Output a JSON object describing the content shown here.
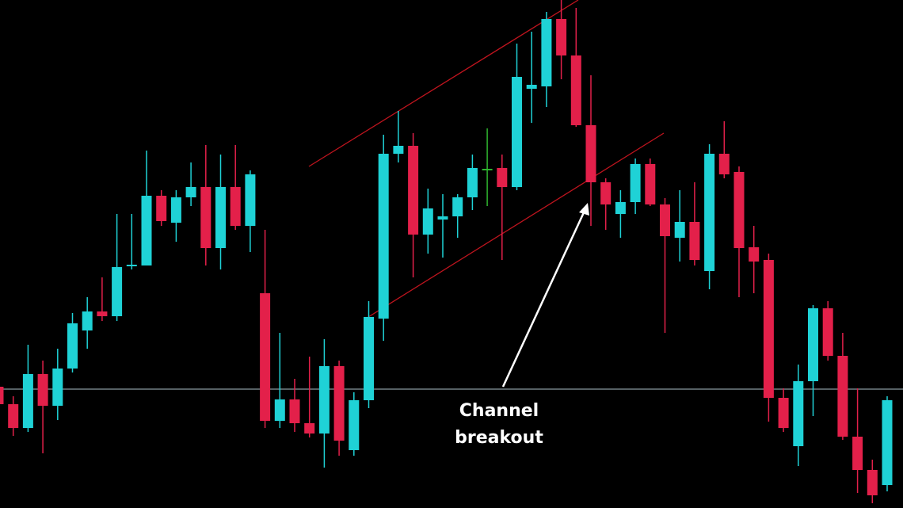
{
  "chart_data": {
    "type": "candlestick",
    "annotation": "Channel breakout",
    "up_color": "#1fd2d6",
    "down_color": "#e3204a",
    "doji_color": "#2fb52f",
    "ylim": [
      0,
      641
    ],
    "open": [
      153,
      131,
      101,
      169,
      129,
      176,
      224,
      248,
      242,
      305,
      306,
      394,
      360,
      392,
      405,
      328,
      405,
      356,
      271,
      110,
      137,
      107,
      94,
      179,
      73,
      136,
      239,
      447,
      457,
      345,
      364,
      368,
      392,
      428,
      429,
      405,
      529,
      532,
      617,
      571,
      483,
      411,
      371,
      386,
      434,
      383,
      341,
      361,
      299,
      447,
      424,
      329,
      313,
      139,
      78,
      160,
      252,
      192,
      90,
      48,
      29
    ],
    "high": [
      161,
      141,
      206,
      186,
      201,
      246,
      266,
      291,
      371,
      371,
      451,
      401,
      401,
      436,
      458,
      446,
      458,
      426,
      351,
      221,
      163,
      191,
      213,
      186,
      146,
      261,
      471,
      501,
      473,
      403,
      396,
      396,
      446,
      479,
      446,
      586,
      601,
      626,
      641,
      631,
      546,
      416,
      401,
      441,
      441,
      391,
      401,
      411,
      459,
      488,
      431,
      356,
      321,
      151,
      181,
      256,
      261,
      221,
      151,
      61,
      141
    ],
    "low": [
      126,
      91,
      96,
      69,
      111,
      171,
      201,
      236,
      236,
      301,
      306,
      356,
      336,
      381,
      306,
      301,
      351,
      323,
      101,
      101,
      96,
      89,
      51,
      66,
      66,
      126,
      211,
      436,
      291,
      321,
      316,
      341,
      376,
      381,
      313,
      401,
      486,
      506,
      541,
      481,
      356,
      351,
      341,
      371,
      381,
      221,
      311,
      306,
      276,
      416,
      266,
      271,
      109,
      96,
      53,
      116,
      186,
      86,
      19,
      6,
      21
    ],
    "close": [
      131,
      101,
      169,
      129,
      176,
      233,
      248,
      242,
      304,
      307,
      394,
      362,
      392,
      405,
      328,
      405,
      356,
      421,
      110,
      137,
      107,
      94,
      179,
      85,
      136,
      241,
      447,
      457,
      345,
      378,
      368,
      392,
      429,
      428,
      405,
      544,
      534,
      617,
      571,
      483,
      411,
      383,
      386,
      434,
      383,
      343,
      361,
      313,
      447,
      421,
      328,
      311,
      139,
      101,
      160,
      252,
      192,
      90,
      48,
      16,
      136
    ]
  }
}
